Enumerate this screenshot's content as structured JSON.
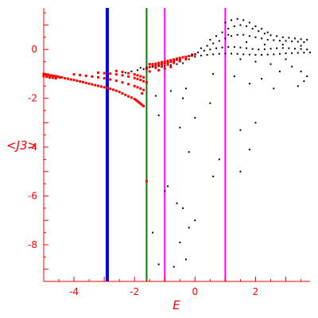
{
  "chart_data": {
    "type": "scatter",
    "title": "",
    "xlabel": "E",
    "ylabel": "<J3>",
    "xlim": [
      -5,
      3.8
    ],
    "ylim": [
      -9.5,
      1.7
    ],
    "x_ticks": [
      -4,
      -2,
      0,
      2
    ],
    "y_ticks": [
      0,
      -2,
      -4,
      -6,
      -8
    ],
    "grid": false,
    "legend": "none",
    "colors": {
      "axis": "#ff0000",
      "red_series": "#ff0000",
      "black_series": "#000000",
      "line_blue": "#0000ff",
      "line_green": "#008000",
      "line_magenta": "#ff00ff"
    },
    "vertical_lines": [
      {
        "x": -2.9,
        "color": "#0000ff",
        "width": 4
      },
      {
        "x": -1.6,
        "color": "#008000",
        "width": 2
      },
      {
        "x": -1.0,
        "color": "#ff00ff",
        "width": 2
      },
      {
        "x": 1.0,
        "color": "#ff00ff",
        "width": 2
      }
    ],
    "series": [
      {
        "color": "#ff0000",
        "size": 3,
        "points": [
          [
            -5.0,
            -1.0
          ],
          [
            -4.95,
            -1.02
          ],
          [
            -4.9,
            -1.05
          ],
          [
            -4.85,
            -1.03
          ],
          [
            -4.8,
            -1.08
          ],
          [
            -4.75,
            -1.06
          ],
          [
            -4.7,
            -1.1
          ],
          [
            -4.65,
            -1.08
          ],
          [
            -4.6,
            -1.12
          ],
          [
            -4.55,
            -1.1
          ],
          [
            -4.5,
            -1.13
          ],
          [
            -4.45,
            -1.15
          ],
          [
            -4.4,
            -1.14
          ],
          [
            -4.3,
            -1.18
          ],
          [
            -4.2,
            -1.2
          ],
          [
            -4.1,
            -1.23
          ],
          [
            -4.0,
            -1.25
          ],
          [
            -3.9,
            -1.28
          ],
          [
            -3.8,
            -1.31
          ],
          [
            -3.7,
            -1.34
          ],
          [
            -3.6,
            -1.37
          ],
          [
            -3.5,
            -1.4
          ],
          [
            -3.4,
            -1.43
          ],
          [
            -3.3,
            -1.46
          ],
          [
            -3.2,
            -1.49
          ],
          [
            -3.1,
            -1.52
          ],
          [
            -3.0,
            -1.55
          ],
          [
            -2.9,
            -1.58
          ],
          [
            -2.8,
            -1.61
          ],
          [
            -2.7,
            -1.65
          ],
          [
            -2.6,
            -1.69
          ],
          [
            -2.5,
            -1.74
          ],
          [
            -2.4,
            -1.8
          ],
          [
            -2.3,
            -1.86
          ],
          [
            -2.2,
            -1.92
          ],
          [
            -2.1,
            -1.97
          ],
          [
            -2.0,
            -2.03
          ],
          [
            -1.95,
            -2.07
          ],
          [
            -1.9,
            -2.12
          ],
          [
            -1.85,
            -2.17
          ],
          [
            -1.8,
            -2.22
          ],
          [
            -1.75,
            -2.27
          ],
          [
            -1.7,
            -2.32
          ],
          [
            -5.0,
            -1.1
          ],
          [
            -4.9,
            -1.12
          ],
          [
            -4.8,
            -1.15
          ],
          [
            -4.7,
            -1.16
          ],
          [
            -4.6,
            -1.18
          ],
          [
            -4.0,
            -1.02
          ],
          [
            -3.8,
            -1.05
          ],
          [
            -3.6,
            -1.08
          ],
          [
            -3.4,
            -1.11
          ],
          [
            -3.2,
            -1.14
          ],
          [
            -3.0,
            -1.18
          ],
          [
            -2.8,
            -1.23
          ],
          [
            -2.6,
            -1.28
          ],
          [
            -2.4,
            -1.35
          ],
          [
            -2.2,
            -1.42
          ],
          [
            -2.0,
            -1.5
          ],
          [
            -1.9,
            -1.55
          ],
          [
            -1.8,
            -1.6
          ],
          [
            -1.7,
            -1.66
          ],
          [
            -3.2,
            -0.95
          ],
          [
            -3.0,
            -0.97
          ],
          [
            -2.8,
            -0.99
          ],
          [
            -2.6,
            -1.02
          ],
          [
            -2.4,
            -1.06
          ],
          [
            -2.2,
            -1.11
          ],
          [
            -2.0,
            -1.17
          ],
          [
            -1.9,
            -1.21
          ],
          [
            -1.8,
            -1.25
          ],
          [
            -1.7,
            -1.3
          ],
          [
            -1.6,
            -1.35
          ],
          [
            -2.6,
            -0.88
          ],
          [
            -2.4,
            -0.92
          ],
          [
            -2.2,
            -0.97
          ],
          [
            -2.0,
            -1.02
          ],
          [
            -1.9,
            -1.06
          ],
          [
            -1.8,
            -1.1
          ],
          [
            -1.7,
            -1.14
          ],
          [
            -1.5,
            -0.6
          ],
          [
            -1.4,
            -0.6
          ],
          [
            -1.3,
            -0.58
          ],
          [
            -1.2,
            -0.55
          ],
          [
            -1.1,
            -0.52
          ],
          [
            -1.0,
            -0.5
          ],
          [
            -0.9,
            -0.47
          ],
          [
            -0.8,
            -0.44
          ],
          [
            -0.7,
            -0.41
          ],
          [
            -0.6,
            -0.38
          ],
          [
            -0.5,
            -0.35
          ],
          [
            -0.4,
            -0.32
          ],
          [
            -0.3,
            -0.3
          ],
          [
            -0.2,
            -0.27
          ],
          [
            -1.4,
            -0.68
          ],
          [
            -1.3,
            -0.66
          ],
          [
            -1.2,
            -0.63
          ],
          [
            -1.1,
            -0.6
          ],
          [
            -1.0,
            -0.57
          ],
          [
            -0.9,
            -0.54
          ],
          [
            -0.8,
            -0.5
          ],
          [
            -0.7,
            -0.46
          ],
          [
            -0.6,
            -0.42
          ],
          [
            -0.5,
            -0.39
          ],
          [
            -1.5,
            -0.72
          ],
          [
            -1.3,
            -0.75
          ],
          [
            -1.1,
            -0.7
          ],
          [
            -0.9,
            -0.62
          ],
          [
            -0.7,
            -0.55
          ],
          [
            -0.5,
            -0.48
          ],
          [
            -0.3,
            -0.4
          ],
          [
            -0.1,
            -0.25
          ],
          [
            0.0,
            -0.2
          ],
          [
            -1.6,
            -0.8
          ],
          [
            -1.2,
            -0.85
          ],
          [
            -1.0,
            -0.78
          ],
          [
            -0.8,
            -0.72
          ],
          [
            -1.75,
            -1.8
          ],
          [
            -1.6,
            -5.4
          ],
          [
            -1.5,
            -0.9
          ]
        ]
      },
      {
        "color": "#000000",
        "size": 2,
        "points": [
          [
            -1.8,
            -0.75
          ],
          [
            -1.6,
            -0.73
          ],
          [
            -1.4,
            -0.71
          ],
          [
            -1.2,
            -0.69
          ],
          [
            -1.0,
            -0.67
          ],
          [
            -0.8,
            -0.64
          ],
          [
            -0.6,
            -0.6
          ],
          [
            -0.4,
            -0.56
          ],
          [
            -2.3,
            -0.95
          ],
          [
            -2.1,
            -0.9
          ],
          [
            -1.9,
            -0.85
          ],
          [
            -1.7,
            -0.8
          ],
          [
            -0.2,
            -0.4
          ],
          [
            0.0,
            -0.3
          ],
          [
            0.2,
            -0.25
          ],
          [
            0.4,
            -0.22
          ],
          [
            0.6,
            -0.2
          ],
          [
            0.8,
            -0.18
          ],
          [
            1.0,
            -0.17
          ],
          [
            1.2,
            -0.17
          ],
          [
            1.4,
            -0.18
          ],
          [
            1.6,
            -0.2
          ],
          [
            1.8,
            -0.21
          ],
          [
            2.0,
            -0.22
          ],
          [
            2.2,
            -0.22
          ],
          [
            2.4,
            -0.21
          ],
          [
            2.6,
            -0.2
          ],
          [
            2.8,
            -0.18
          ],
          [
            3.0,
            -0.16
          ],
          [
            3.2,
            -0.15
          ],
          [
            3.4,
            -0.14
          ],
          [
            3.6,
            -0.13
          ],
          [
            3.8,
            -0.12
          ],
          [
            -0.1,
            -0.2
          ],
          [
            0.1,
            -0.12
          ],
          [
            0.3,
            -0.05
          ],
          [
            0.5,
            0.0
          ],
          [
            0.7,
            0.05
          ],
          [
            0.9,
            0.08
          ],
          [
            1.1,
            0.1
          ],
          [
            1.3,
            0.1
          ],
          [
            1.5,
            0.08
          ],
          [
            1.7,
            0.05
          ],
          [
            1.9,
            0.02
          ],
          [
            2.1,
            0.0
          ],
          [
            2.3,
            0.01
          ],
          [
            2.5,
            0.03
          ],
          [
            2.7,
            0.05
          ],
          [
            2.9,
            0.06
          ],
          [
            3.1,
            0.05
          ],
          [
            3.3,
            0.03
          ],
          [
            3.5,
            0.02
          ],
          [
            3.7,
            0.0
          ],
          [
            0.2,
            0.05
          ],
          [
            0.4,
            0.15
          ],
          [
            0.6,
            0.25
          ],
          [
            0.8,
            0.35
          ],
          [
            1.0,
            0.45
          ],
          [
            1.2,
            0.55
          ],
          [
            1.4,
            0.6
          ],
          [
            1.6,
            0.6
          ],
          [
            1.8,
            0.55
          ],
          [
            2.0,
            0.5
          ],
          [
            2.2,
            0.45
          ],
          [
            2.4,
            0.4
          ],
          [
            2.6,
            0.38
          ],
          [
            2.8,
            0.36
          ],
          [
            3.0,
            0.35
          ],
          [
            3.2,
            0.33
          ],
          [
            3.4,
            0.32
          ],
          [
            3.6,
            0.3
          ],
          [
            0.5,
            0.4
          ],
          [
            0.7,
            0.55
          ],
          [
            0.9,
            0.7
          ],
          [
            1.1,
            0.85
          ],
          [
            1.3,
            0.95
          ],
          [
            1.5,
            1.0
          ],
          [
            1.7,
            0.95
          ],
          [
            1.9,
            0.85
          ],
          [
            2.1,
            0.75
          ],
          [
            2.3,
            0.65
          ],
          [
            2.5,
            0.58
          ],
          [
            2.7,
            0.55
          ],
          [
            2.9,
            0.5
          ],
          [
            3.1,
            0.48
          ],
          [
            3.3,
            0.45
          ],
          [
            3.5,
            0.42
          ],
          [
            3.7,
            0.4
          ],
          [
            1.0,
            1.1
          ],
          [
            1.2,
            1.2
          ],
          [
            1.4,
            1.25
          ],
          [
            1.6,
            1.2
          ],
          [
            1.8,
            1.1
          ],
          [
            2.0,
            0.95
          ],
          [
            2.2,
            0.85
          ],
          [
            2.4,
            0.7
          ],
          [
            1.1,
            0.6
          ],
          [
            1.7,
            0.3
          ],
          [
            2.3,
            0.2
          ],
          [
            2.9,
            0.2
          ],
          [
            3.5,
            0.15
          ],
          [
            1.5,
            -0.4
          ],
          [
            2.0,
            -0.5
          ],
          [
            2.5,
            -0.6
          ],
          [
            3.0,
            -0.4
          ],
          [
            3.2,
            -0.7
          ],
          [
            3.5,
            -0.9
          ],
          [
            3.7,
            -1.1
          ],
          [
            2.8,
            -0.9
          ],
          [
            2.2,
            -1.2
          ],
          [
            1.8,
            -1.4
          ],
          [
            2.6,
            -1.6
          ],
          [
            3.4,
            -1.5
          ],
          [
            3.6,
            -1.3
          ],
          [
            0.6,
            -1.0
          ],
          [
            1.3,
            -1.1
          ],
          [
            -0.4,
            -2.0
          ],
          [
            0.0,
            -2.8
          ],
          [
            -0.5,
            -3.2
          ],
          [
            -0.2,
            -4.2
          ],
          [
            0.8,
            -4.5
          ],
          [
            0.6,
            -5.2
          ],
          [
            1.5,
            -5.0
          ],
          [
            -0.6,
            -6.3
          ],
          [
            -0.4,
            -6.5
          ],
          [
            -0.9,
            -5.6
          ],
          [
            0.0,
            -7.0
          ],
          [
            -0.2,
            -7.3
          ],
          [
            -1.4,
            -7.5
          ],
          [
            -0.5,
            -7.9
          ],
          [
            -1.2,
            -8.8
          ],
          [
            -0.7,
            -8.9
          ],
          [
            -0.3,
            -8.6
          ],
          [
            1.8,
            -4.1
          ],
          [
            2.0,
            -3.0
          ],
          [
            1.5,
            -3.3
          ],
          [
            0.5,
            -2.2
          ],
          [
            -1.2,
            -2.7
          ],
          [
            -0.8,
            -1.7
          ],
          [
            -0.3,
            -1.6
          ],
          [
            -1.3,
            -1.9
          ],
          [
            -1.0,
            -5.8
          ]
        ]
      }
    ]
  }
}
